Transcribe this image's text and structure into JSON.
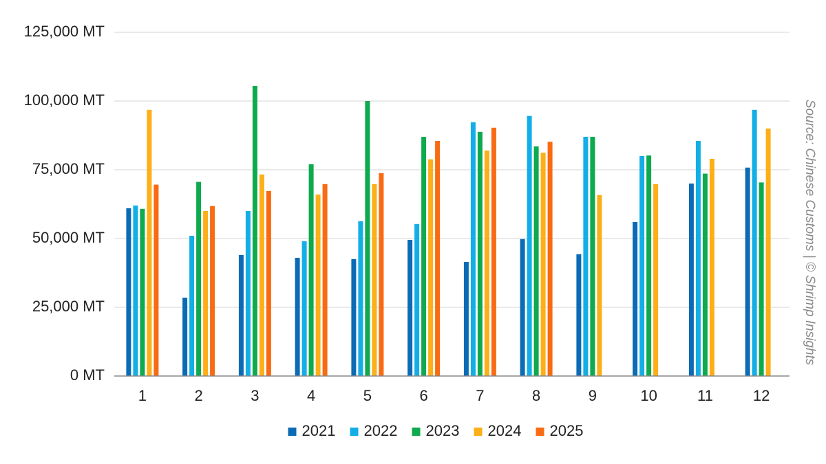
{
  "chart_data": {
    "type": "bar",
    "title": "",
    "xlabel": "",
    "ylabel": "",
    "categories": [
      "1",
      "2",
      "3",
      "4",
      "5",
      "6",
      "7",
      "8",
      "9",
      "10",
      "11",
      "12"
    ],
    "ylim": [
      0,
      125000
    ],
    "yticks": [
      0,
      25000,
      50000,
      75000,
      100000,
      125000
    ],
    "ytick_labels": [
      "0 MT",
      "25,000 MT",
      "50,000 MT",
      "75,000 MT",
      "100,000 MT",
      "125,000 MT"
    ],
    "grid": true,
    "legend_position": "bottom",
    "series": [
      {
        "name": "2021",
        "color": "#0b6bb5",
        "values": [
          61000,
          28500,
          44000,
          43000,
          42500,
          49500,
          41500,
          49800,
          44300,
          56000,
          70000,
          75800
        ]
      },
      {
        "name": "2022",
        "color": "#13aee6",
        "values": [
          62000,
          51000,
          60000,
          49000,
          56300,
          55300,
          92300,
          94600,
          87000,
          80000,
          85500,
          96800
        ]
      },
      {
        "name": "2023",
        "color": "#0eaa4e",
        "values": [
          60800,
          70600,
          105500,
          77000,
          100000,
          87000,
          88800,
          83500,
          87000,
          80200,
          73600,
          70400
        ]
      },
      {
        "name": "2024",
        "color": "#fcaf17",
        "values": [
          96800,
          60000,
          73300,
          66000,
          69800,
          78800,
          82000,
          81200,
          65800,
          69800,
          79000,
          90000
        ]
      },
      {
        "name": "2025",
        "color": "#f96b12",
        "values": [
          69600,
          61800,
          67300,
          69800,
          73800,
          85500,
          90300,
          85200,
          null,
          null,
          null,
          null
        ]
      }
    ]
  },
  "source_note": "Source: Chinese Customs | © Shrimp Insights"
}
